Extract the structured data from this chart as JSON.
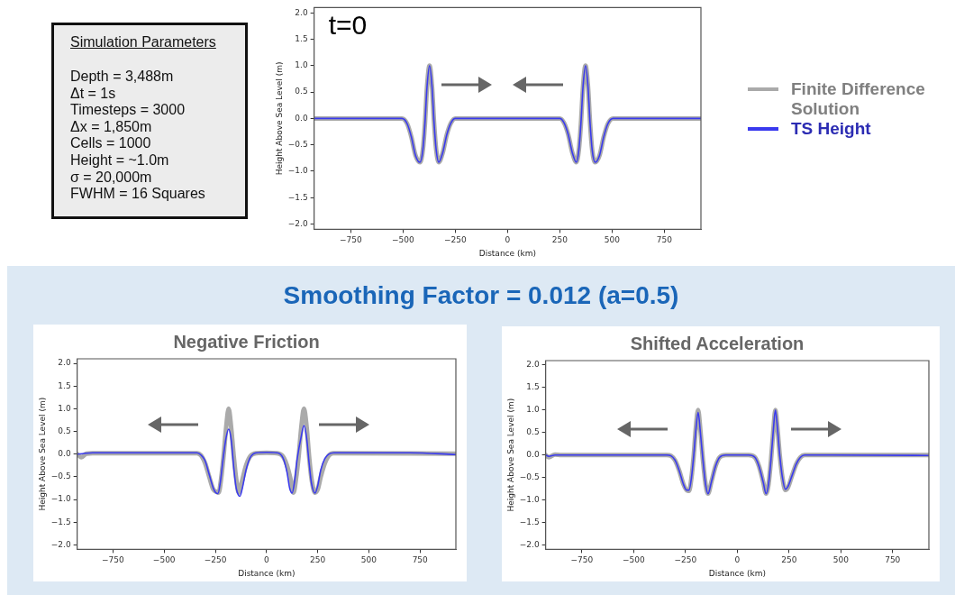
{
  "chart_data": [
    {
      "type": "other",
      "title": "Simulation Parameters",
      "annotations": [
        "Depth = 3,488m",
        "Δt = 1s",
        "Timesteps = 3000",
        "Δx = 1,850m",
        "Cells = 1000",
        "Height = ~1.0m",
        "σ = 20,000m",
        "FWHM = 16 Squares"
      ]
    },
    {
      "type": "line",
      "xlabel": "Distance (km)",
      "ylabel": "Height Above Sea Level (m)",
      "annotations": [
        "t=0"
      ],
      "legend": "right",
      "grid": false,
      "xlim": [
        -925,
        925
      ],
      "ylim": [
        -2.1,
        2.1
      ],
      "xticks": [
        {
          "value": -750,
          "label": "−750"
        },
        {
          "value": -500,
          "label": "−500"
        },
        {
          "value": -250,
          "label": "−250"
        },
        {
          "value": 0,
          "label": "0"
        },
        {
          "value": 250,
          "label": "250"
        },
        {
          "value": 500,
          "label": "500"
        },
        {
          "value": 750,
          "label": "750"
        }
      ],
      "yticks": [
        {
          "value": -2,
          "label": "−2.0"
        },
        {
          "value": -1.5,
          "label": "−1.5"
        },
        {
          "value": -1,
          "label": "−1.0"
        },
        {
          "value": -0.5,
          "label": "−0.5"
        },
        {
          "value": 0,
          "label": "0.0"
        },
        {
          "value": 0.5,
          "label": "0.5"
        },
        {
          "value": 1,
          "label": "1.0"
        },
        {
          "value": 1.5,
          "label": "1.5"
        },
        {
          "value": 2,
          "label": "2.0"
        }
      ],
      "x": [
        -925,
        -505,
        -480,
        -460,
        -440,
        -419,
        -405,
        -395,
        -385,
        -373,
        -361,
        -351,
        -341,
        -329,
        -310,
        -290,
        -270,
        -250,
        250,
        270,
        290,
        310,
        329,
        341,
        351,
        361,
        373,
        385,
        395,
        405,
        419,
        440,
        460,
        480,
        505,
        925
      ],
      "series": [
        {
          "name": "Finite Difference Solution",
          "color": "#aaaaaa",
          "values": [
            0,
            0,
            -0.1,
            -0.35,
            -0.7,
            -0.83,
            -0.6,
            -0.1,
            0.6,
            1.0,
            0.6,
            -0.1,
            -0.6,
            -0.83,
            -0.65,
            -0.3,
            -0.08,
            0,
            0,
            -0.08,
            -0.3,
            -0.65,
            -0.83,
            -0.6,
            -0.1,
            0.6,
            1.0,
            0.6,
            -0.1,
            -0.6,
            -0.83,
            -0.7,
            -0.35,
            -0.1,
            0,
            0
          ]
        },
        {
          "name": "TS Height",
          "color": "#3a3aee",
          "values": [
            0,
            0,
            -0.1,
            -0.35,
            -0.7,
            -0.83,
            -0.6,
            -0.1,
            0.6,
            1.0,
            0.6,
            -0.1,
            -0.6,
            -0.83,
            -0.65,
            -0.3,
            -0.08,
            0,
            0,
            -0.08,
            -0.3,
            -0.65,
            -0.83,
            -0.6,
            -0.1,
            0.6,
            1.0,
            0.6,
            -0.1,
            -0.6,
            -0.83,
            -0.7,
            -0.35,
            -0.1,
            0,
            0
          ]
        }
      ]
    },
    {
      "type": "other",
      "title": "Smoothing Factor = 0.012 (a=0.5)"
    },
    {
      "type": "line",
      "title": "Negative Friction",
      "xlabel": "Distance (km)",
      "ylabel": "Height Above Sea Level (m)",
      "grid": false,
      "xlim": [
        -925,
        925
      ],
      "ylim": [
        -2.1,
        2.1
      ],
      "xticks": [
        {
          "value": -750,
          "label": "−750"
        },
        {
          "value": -500,
          "label": "−500"
        },
        {
          "value": -250,
          "label": "−250"
        },
        {
          "value": 0,
          "label": "0"
        },
        {
          "value": 250,
          "label": "250"
        },
        {
          "value": 500,
          "label": "500"
        },
        {
          "value": 750,
          "label": "750"
        }
      ],
      "yticks": [
        {
          "value": -2,
          "label": "−2.0"
        },
        {
          "value": -1.5,
          "label": "−1.5"
        },
        {
          "value": -1,
          "label": "−1.0"
        },
        {
          "value": -0.5,
          "label": "−0.5"
        },
        {
          "value": 0,
          "label": "0.0"
        },
        {
          "value": 0.5,
          "label": "0.5"
        },
        {
          "value": 1,
          "label": "1.0"
        },
        {
          "value": 1.5,
          "label": "1.5"
        },
        {
          "value": 2,
          "label": "2.0"
        }
      ],
      "series": [
        {
          "color": "#aaaaaa",
          "x": [
            -925,
            -905,
            -880,
            -850,
            -340,
            -320,
            -300,
            -280,
            -260,
            -245,
            -234,
            -222,
            -210,
            -197,
            -185,
            -173,
            -160,
            -148,
            -136,
            -120,
            -100,
            -80,
            -50,
            0,
            50,
            80,
            100,
            120,
            132,
            144,
            157,
            170,
            183,
            196,
            208,
            220,
            237,
            250,
            265,
            285,
            305,
            325,
            345,
            925
          ],
          "values": [
            0,
            -0.07,
            0.01,
            0.02,
            0.02,
            -0.03,
            -0.2,
            -0.5,
            -0.78,
            -0.83,
            -0.85,
            -0.55,
            -0.05,
            0.6,
            1.0,
            0.6,
            -0.05,
            -0.55,
            -0.85,
            -0.6,
            -0.25,
            -0.05,
            0.02,
            0.03,
            0.02,
            -0.05,
            -0.25,
            -0.6,
            -0.85,
            -0.55,
            -0.05,
            0.6,
            1.0,
            0.6,
            -0.05,
            -0.55,
            -0.85,
            -0.78,
            -0.5,
            -0.2,
            -0.03,
            0.02,
            0.02,
            0.01
          ]
        },
        {
          "color": "#3a3aee",
          "x": [
            -925,
            -900,
            -850,
            -340,
            -320,
            -300,
            -280,
            -260,
            -248,
            -237,
            -225,
            -212,
            -198,
            -185,
            -172,
            -160,
            -148,
            -138,
            -130,
            -118,
            -100,
            -80,
            -50,
            0,
            50,
            80,
            100,
            113,
            125,
            137,
            150,
            170,
            183,
            196,
            208,
            220,
            237,
            250,
            265,
            285,
            305,
            330,
            700,
            925
          ],
          "values": [
            0,
            0.01,
            0.03,
            0.03,
            -0.02,
            -0.15,
            -0.45,
            -0.75,
            -0.85,
            -0.87,
            -0.6,
            -0.1,
            0.35,
            0.55,
            0.3,
            -0.3,
            -0.75,
            -0.9,
            -0.93,
            -0.75,
            -0.35,
            -0.08,
            0.03,
            0.04,
            0.03,
            -0.08,
            -0.4,
            -0.75,
            -0.86,
            -0.6,
            -0.1,
            0.4,
            0.63,
            0.35,
            -0.2,
            -0.65,
            -0.86,
            -0.7,
            -0.35,
            -0.1,
            0,
            0.03,
            0.03,
            -0.01
          ]
        }
      ]
    },
    {
      "type": "line",
      "title": "Shifted Acceleration",
      "xlabel": "Distance (km)",
      "ylabel": "Height Above Sea Level (m)",
      "grid": false,
      "xlim": [
        -925,
        925
      ],
      "ylim": [
        -2.1,
        2.1
      ],
      "xticks": [
        {
          "value": -750,
          "label": "−750"
        },
        {
          "value": -500,
          "label": "−500"
        },
        {
          "value": -250,
          "label": "−250"
        },
        {
          "value": 0,
          "label": "0"
        },
        {
          "value": 250,
          "label": "250"
        },
        {
          "value": 500,
          "label": "500"
        },
        {
          "value": 750,
          "label": "750"
        }
      ],
      "yticks": [
        {
          "value": -2,
          "label": "−2.0"
        },
        {
          "value": -1.5,
          "label": "−1.5"
        },
        {
          "value": -1,
          "label": "−1.0"
        },
        {
          "value": -0.5,
          "label": "−0.5"
        },
        {
          "value": 0,
          "label": "0.0"
        },
        {
          "value": 0.5,
          "label": "0.5"
        },
        {
          "value": 1,
          "label": "1.0"
        },
        {
          "value": 1.5,
          "label": "1.5"
        },
        {
          "value": 2,
          "label": "2.0"
        }
      ],
      "x": [
        -925,
        -910,
        -880,
        -850,
        -340,
        -320,
        -300,
        -280,
        -260,
        -245,
        -233,
        -221,
        -210,
        -200,
        -189,
        -178,
        -166,
        -153,
        -141,
        -125,
        -105,
        -85,
        -55,
        0,
        55,
        85,
        105,
        125,
        139,
        151,
        163,
        174,
        184,
        194,
        205,
        218,
        232,
        245,
        265,
        285,
        305,
        325,
        345,
        925
      ],
      "series": [
        {
          "color": "#aaaaaa",
          "values": [
            0,
            -0.05,
            0.01,
            0,
            0,
            -0.02,
            -0.12,
            -0.35,
            -0.65,
            -0.78,
            -0.8,
            -0.5,
            0,
            0.6,
            1.0,
            0.55,
            -0.1,
            -0.65,
            -0.86,
            -0.6,
            -0.25,
            -0.05,
            0,
            0,
            0,
            -0.05,
            -0.25,
            -0.6,
            -0.86,
            -0.65,
            -0.1,
            0.55,
            1.0,
            0.6,
            0,
            -0.5,
            -0.78,
            -0.72,
            -0.45,
            -0.2,
            -0.05,
            0,
            0,
            0
          ]
        },
        {
          "color": "#3a3aee",
          "values": [
            0,
            -0.03,
            0,
            0,
            0,
            -0.02,
            -0.12,
            -0.35,
            -0.65,
            -0.78,
            -0.78,
            -0.5,
            0,
            0.55,
            0.95,
            0.5,
            -0.1,
            -0.65,
            -0.86,
            -0.6,
            -0.25,
            -0.05,
            0,
            0,
            0,
            -0.05,
            -0.25,
            -0.6,
            -0.86,
            -0.65,
            -0.1,
            0.55,
            1.0,
            0.6,
            0,
            -0.5,
            -0.76,
            -0.7,
            -0.45,
            -0.2,
            -0.05,
            0,
            0,
            -0.01
          ]
        }
      ]
    }
  ]
}
